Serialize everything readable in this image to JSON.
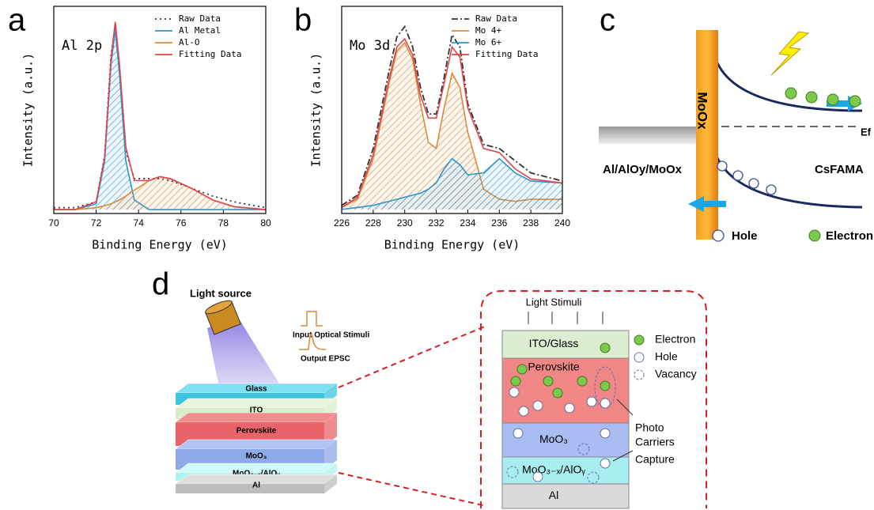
{
  "chart_data": [
    {
      "type": "line",
      "panel_label": "a",
      "title": "Al 2p",
      "x_label": "Binding Energy (eV)",
      "y_label": "Intensity (a.u.)",
      "x": [
        70,
        71,
        72,
        72.4,
        72.7,
        72.9,
        73.1,
        73.4,
        73.8,
        74.5,
        75,
        75.5,
        76.5,
        77.5,
        78.5,
        80
      ],
      "series": [
        {
          "name": "Raw Data",
          "color": "#333355",
          "dash": "dotted",
          "values": [
            0.01,
            0.01,
            0.04,
            0.28,
            0.8,
            0.95,
            0.72,
            0.3,
            0.16,
            0.16,
            0.16,
            0.15,
            0.11,
            0.07,
            0.04,
            0.01
          ]
        },
        {
          "name": "Al Metal",
          "color": "#2e95cf",
          "hatched": true,
          "values": [
            0,
            0,
            0.03,
            0.25,
            0.75,
            0.93,
            0.7,
            0.25,
            0.05,
            0,
            0,
            0,
            0,
            0,
            0,
            0
          ]
        },
        {
          "name": "Al-O",
          "color": "#d98a3a",
          "hatched": true,
          "values": [
            0,
            0,
            0.01,
            0.02,
            0.03,
            0.04,
            0.05,
            0.07,
            0.1,
            0.15,
            0.17,
            0.16,
            0.11,
            0.05,
            0.015,
            0
          ]
        },
        {
          "name": "Fitting Data",
          "color": "#e0454b",
          "values": [
            0,
            0,
            0.04,
            0.27,
            0.78,
            0.97,
            0.75,
            0.32,
            0.15,
            0.15,
            0.17,
            0.16,
            0.11,
            0.05,
            0.015,
            0
          ]
        }
      ],
      "xlim": [
        70,
        80
      ],
      "xticks": [
        70,
        72,
        74,
        76,
        78,
        80
      ],
      "ylim": [
        -0.02,
        1.05
      ],
      "legend": "upper right"
    },
    {
      "type": "line",
      "panel_label": "b",
      "title": "Mo 3d",
      "x_label": "Binding Energy (eV)",
      "y_label": "Intensity (a.u.)",
      "x": [
        226,
        227,
        228,
        229,
        229.5,
        230,
        230.5,
        231,
        231.5,
        232,
        232.5,
        233,
        233.5,
        234,
        235,
        236,
        237,
        238,
        240
      ],
      "series": [
        {
          "name": "Raw Data",
          "color": "#333333",
          "dash": "dashdot",
          "values": [
            0.02,
            0.07,
            0.3,
            0.68,
            0.85,
            0.9,
            0.8,
            0.6,
            0.47,
            0.47,
            0.65,
            0.86,
            0.8,
            0.52,
            0.32,
            0.3,
            0.24,
            0.18,
            0.14
          ]
        },
        {
          "name": "Mo 4+",
          "color": "#d98a3a",
          "hatched": true,
          "values": [
            0.01,
            0.05,
            0.25,
            0.62,
            0.78,
            0.82,
            0.74,
            0.52,
            0.33,
            0.3,
            0.5,
            0.67,
            0.6,
            0.38,
            0.1,
            0.05,
            0.04,
            0.05,
            0.05
          ]
        },
        {
          "name": "Mo 6+",
          "color": "#2e95cf",
          "hatched": true,
          "values": [
            0,
            0.01,
            0.02,
            0.04,
            0.05,
            0.06,
            0.07,
            0.08,
            0.1,
            0.13,
            0.2,
            0.25,
            0.22,
            0.17,
            0.18,
            0.25,
            0.18,
            0.14,
            0.13
          ]
        },
        {
          "name": "Fitting Data",
          "color": "#e0454b",
          "values": [
            0.01,
            0.06,
            0.27,
            0.64,
            0.8,
            0.84,
            0.76,
            0.56,
            0.45,
            0.45,
            0.62,
            0.8,
            0.75,
            0.5,
            0.3,
            0.28,
            0.2,
            0.15,
            0.13
          ]
        }
      ],
      "xlim": [
        226,
        240
      ],
      "xticks": [
        226,
        228,
        230,
        232,
        234,
        236,
        238,
        240
      ],
      "ylim": [
        -0.02,
        1.0
      ],
      "legend": "upper right"
    }
  ],
  "panel_c": {
    "label": "c",
    "bar": "MoOx",
    "fermi": "Ef",
    "left_material": "Al/AlOy/MoOx",
    "right_material": "CsFAMA",
    "legend_hole": "Hole",
    "legend_electron": "Electron"
  },
  "panel_d": {
    "label": "d",
    "light_source": "Light source",
    "input": "Input Optical Stimuli",
    "output": "Output EPSC",
    "layers": [
      "Glass",
      "ITO",
      "Perovskite",
      "MoO₃",
      "MoO₃₋ₓ/AlOᵧ",
      "Al"
    ],
    "inset": {
      "light": "Light Stimuli",
      "layers": [
        "ITO/Glass",
        "Perovskite",
        "MoO₃",
        "MoO₃₋ₓ/AlOᵧ",
        "Al"
      ],
      "legend": [
        "Electron",
        "Hole",
        "Vacancy"
      ],
      "photo_carriers": [
        "Photo",
        "Carriers"
      ],
      "capture": "Capture"
    }
  }
}
